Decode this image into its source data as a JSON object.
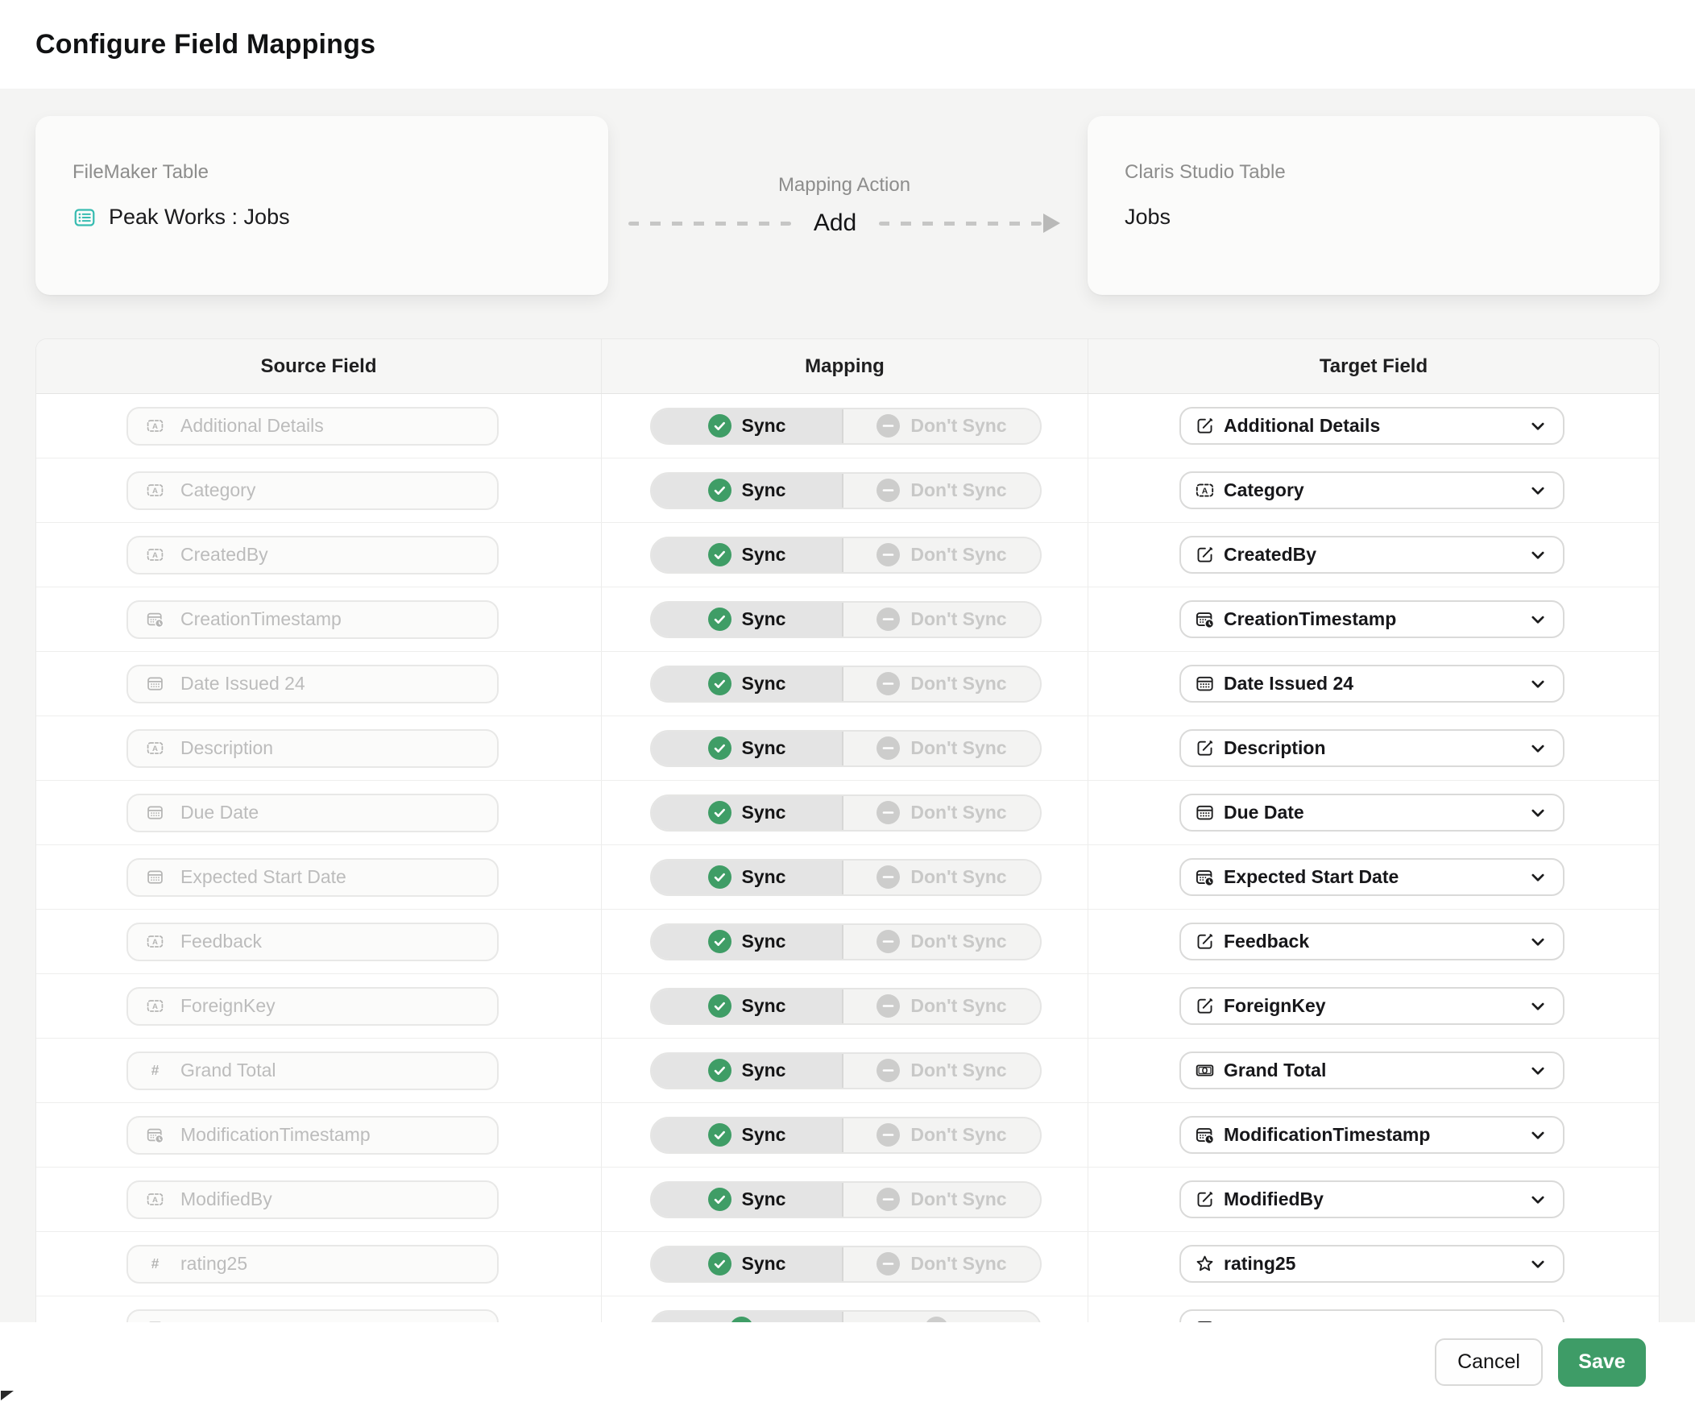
{
  "window": {
    "title": "Configure Field Mappings"
  },
  "source_panel": {
    "label": "FileMaker Table",
    "value": "Peak Works : Jobs",
    "icon": "table-list-icon"
  },
  "mapping_action": {
    "label": "Mapping Action",
    "value": "Add"
  },
  "target_panel": {
    "label": "Claris Studio Table",
    "value": "Jobs"
  },
  "table": {
    "columns": [
      "Source Field",
      "Mapping",
      "Target Field"
    ],
    "toggle": {
      "sync": "Sync",
      "dont_sync": "Don't Sync"
    },
    "rows": [
      {
        "source": "Additional Details",
        "source_icon": "text-field",
        "selected": "sync",
        "target": "Additional Details",
        "target_icon": "edit"
      },
      {
        "source": "Category",
        "source_icon": "text-field",
        "selected": "sync",
        "target": "Category",
        "target_icon": "text-field"
      },
      {
        "source": "CreatedBy",
        "source_icon": "text-field",
        "selected": "sync",
        "target": "CreatedBy",
        "target_icon": "edit"
      },
      {
        "source": "CreationTimestamp",
        "source_icon": "calendar-clock",
        "selected": "sync",
        "target": "CreationTimestamp",
        "target_icon": "calendar-clock"
      },
      {
        "source": "Date Issued 24",
        "source_icon": "calendar",
        "selected": "sync",
        "target": "Date Issued 24",
        "target_icon": "calendar"
      },
      {
        "source": "Description",
        "source_icon": "text-field",
        "selected": "sync",
        "target": "Description",
        "target_icon": "edit"
      },
      {
        "source": "Due Date",
        "source_icon": "calendar",
        "selected": "sync",
        "target": "Due Date",
        "target_icon": "calendar"
      },
      {
        "source": "Expected Start Date",
        "source_icon": "calendar",
        "selected": "sync",
        "target": "Expected Start Date",
        "target_icon": "calendar-clock"
      },
      {
        "source": "Feedback",
        "source_icon": "text-field",
        "selected": "sync",
        "target": "Feedback",
        "target_icon": "edit"
      },
      {
        "source": "ForeignKey",
        "source_icon": "text-field",
        "selected": "sync",
        "target": "ForeignKey",
        "target_icon": "edit"
      },
      {
        "source": "Grand Total",
        "source_icon": "number",
        "selected": "sync",
        "target": "Grand Total",
        "target_icon": "money"
      },
      {
        "source": "ModificationTimestamp",
        "source_icon": "calendar-clock",
        "selected": "sync",
        "target": "ModificationTimestamp",
        "target_icon": "calendar-clock"
      },
      {
        "source": "ModifiedBy",
        "source_icon": "text-field",
        "selected": "sync",
        "target": "ModifiedBy",
        "target_icon": "edit"
      },
      {
        "source": "rating25",
        "source_icon": "number",
        "selected": "sync",
        "target": "rating25",
        "target_icon": "star"
      }
    ],
    "partial_row": {
      "visible": true,
      "source_icon": "calendar",
      "target_icon": "calendar"
    }
  },
  "footer": {
    "cancel": "Cancel",
    "save": "Save"
  },
  "colors": {
    "accent_green": "#3e9c67",
    "check_green": "#3f9d66",
    "minus_gray": "#cdcdcc",
    "teal": "#38bcb1"
  }
}
